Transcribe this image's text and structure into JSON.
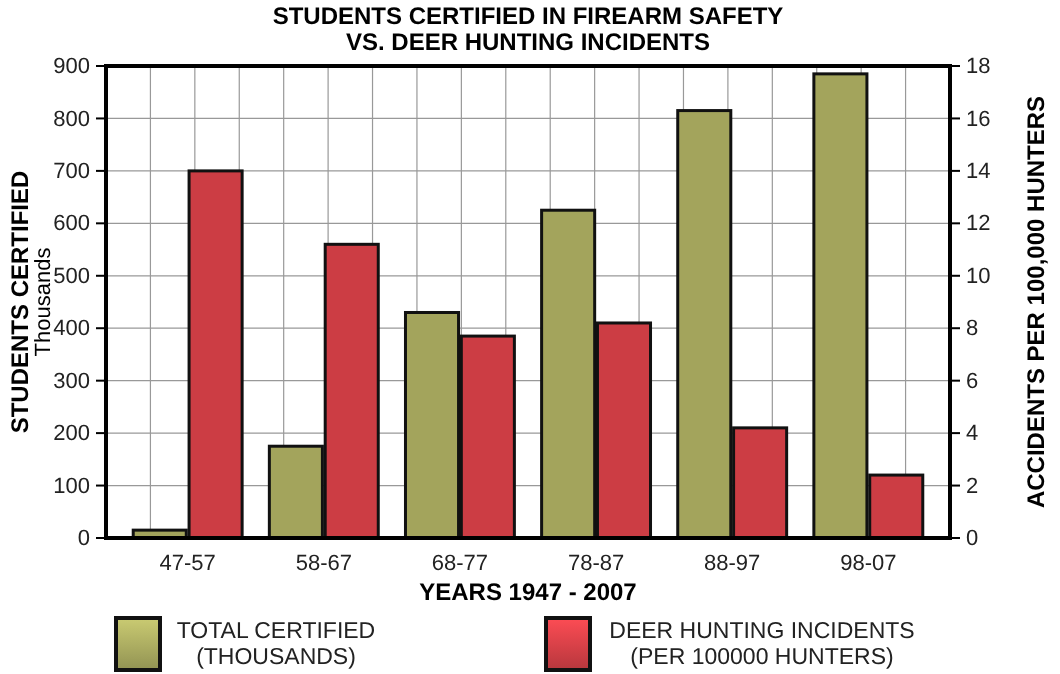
{
  "chart_data": {
    "type": "bar",
    "title": "STUDENTS CERTIFIED IN FIREARM SAFETY\nVS.  DEER HUNTING INCIDENTS",
    "xlabel": "YEARS 1947 - 2007",
    "ylabel": "STUDENTS CERTIFIED\nThousands",
    "y2label": "ACCIDENTS PER 100,000 HUNTERS",
    "categories": [
      "47-57",
      "58-67",
      "68-77",
      "78-87",
      "88-97",
      "98-07"
    ],
    "series": [
      {
        "name": "TOTAL CERTIFIED\n(THOUSANDS)",
        "color": "#a3a45c",
        "values": [
          15,
          175,
          430,
          625,
          815,
          885
        ]
      },
      {
        "name": "DEER HUNTING INCIDENTS\n(PER 100000 HUNTERS)",
        "color": "#cc3d44",
        "axis": "y2",
        "values": [
          14,
          11.2,
          7.7,
          8.2,
          4.2,
          2.4
        ]
      }
    ],
    "ylim": [
      0,
      900
    ],
    "yticks": [
      0,
      100,
      200,
      300,
      400,
      500,
      600,
      700,
      800,
      900
    ],
    "y2lim": [
      0,
      18
    ],
    "y2ticks": [
      0,
      2,
      4,
      6,
      8,
      10,
      12,
      14,
      16,
      18
    ],
    "grid": true,
    "legend": "bottom"
  }
}
